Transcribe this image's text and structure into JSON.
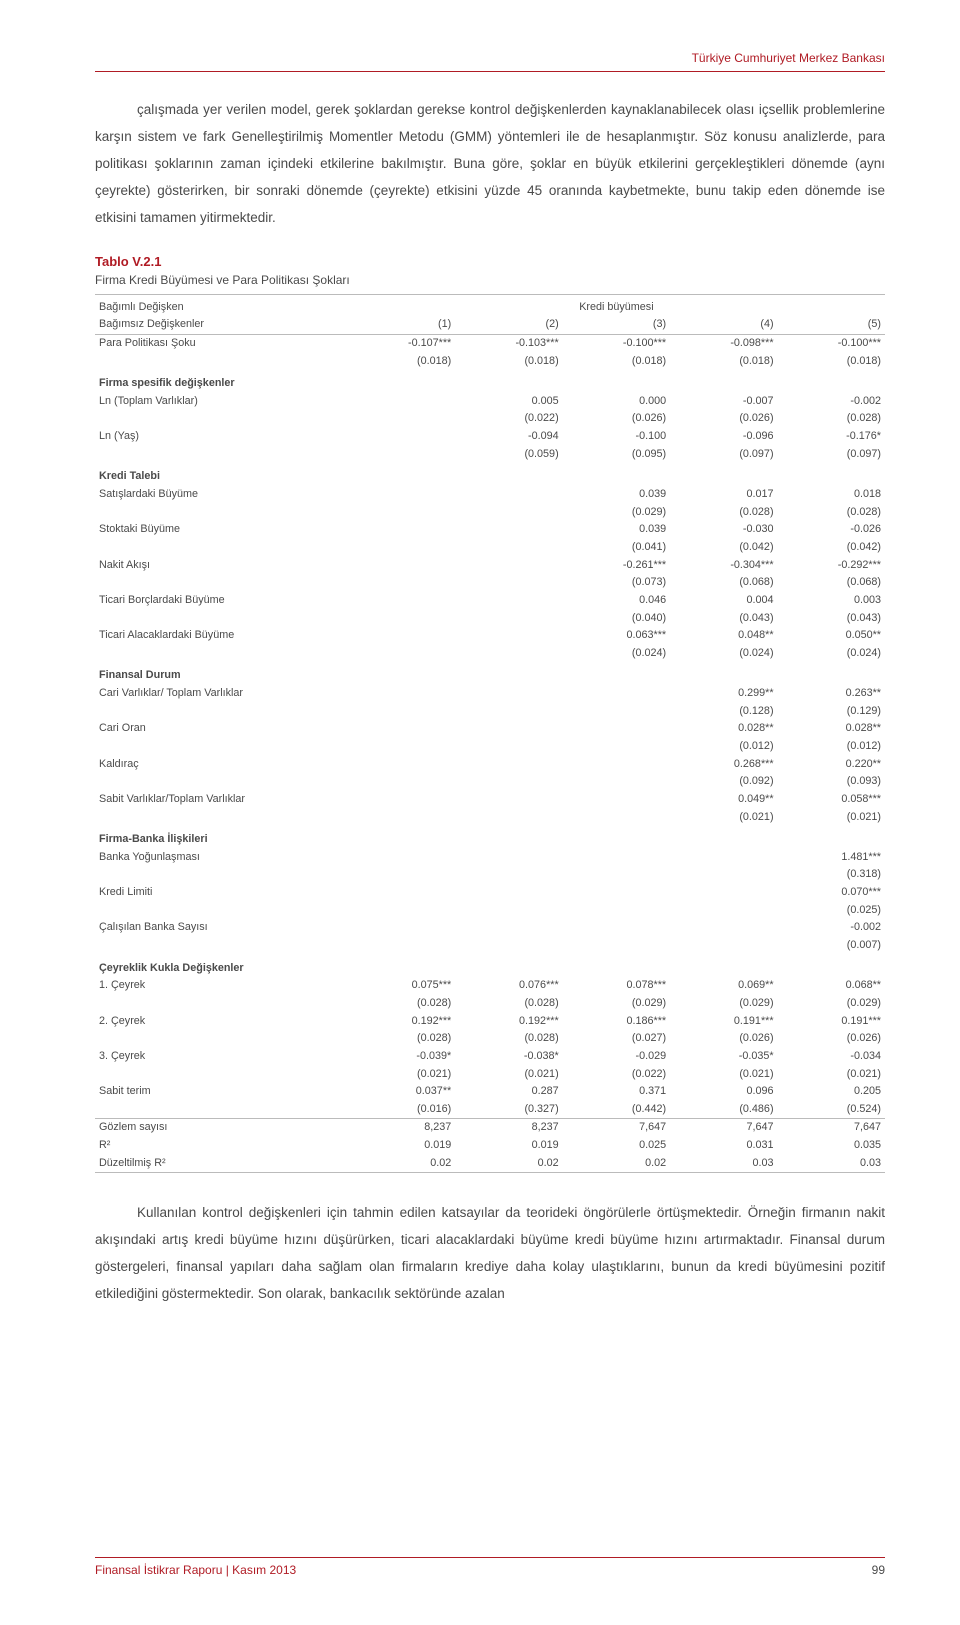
{
  "header": {
    "org": "Türkiye Cumhuriyet Merkez Bankası"
  },
  "para1": "çalışmada yer verilen model, gerek şoklardan gerekse kontrol değişkenlerden kaynaklanabilecek olası içsellik problemlerine karşın sistem ve fark Genelleştirilmiş Momentler Metodu (GMM) yöntemleri ile de hesaplanmıştır. Söz konusu analizlerde, para politikası şoklarının zaman içindeki etkilerine bakılmıştır. Buna göre, şoklar en büyük etkilerini gerçekleştikleri dönemde (aynı çeyrekte) gösterirken, bir sonraki dönemde (çeyrekte) etkisini yüzde 45 oranında kaybetmekte, bunu takip eden dönemde ise etkisini tamamen yitirmektedir.",
  "table": {
    "title": "Tablo V.2.1",
    "subtitle": "Firma Kredi Büyümesi ve Para Politikası Şokları",
    "depvar_label": "Bağımlı Değişken",
    "depvar_value": "Kredi büyümesi",
    "indvar_label": "Bağımsız Değişkenler",
    "col_numbers": [
      "(1)",
      "(2)",
      "(3)",
      "(4)",
      "(5)"
    ],
    "sections": {
      "policy": {
        "label": "Para Politikası Şoku",
        "vals": [
          "-0.107***",
          "-0.103***",
          "-0.100***",
          "-0.098***",
          "-0.100***"
        ],
        "ses": [
          "(0.018)",
          "(0.018)",
          "(0.018)",
          "(0.018)",
          "(0.018)"
        ]
      },
      "firm_spec_label": "Firma spesifik değişkenler",
      "ln_ta": {
        "label": "Ln (Toplam Varlıklar)",
        "vals": [
          "",
          "0.005",
          "0.000",
          "-0.007",
          "-0.002"
        ],
        "ses": [
          "",
          "(0.022)",
          "(0.026)",
          "(0.026)",
          "(0.028)"
        ]
      },
      "ln_age": {
        "label": "Ln (Yaş)",
        "vals": [
          "",
          "-0.094",
          "-0.100",
          "-0.096",
          "-0.176*"
        ],
        "ses": [
          "",
          "(0.059)",
          "(0.095)",
          "(0.097)",
          "(0.097)"
        ]
      },
      "credit_demand_label": "Kredi Talebi",
      "sales_growth": {
        "label": "Satışlardaki Büyüme",
        "vals": [
          "",
          "",
          "0.039",
          "0.017",
          "0.018"
        ],
        "ses": [
          "",
          "",
          "(0.029)",
          "(0.028)",
          "(0.028)"
        ]
      },
      "stock_growth": {
        "label": "Stoktaki Büyüme",
        "vals": [
          "",
          "",
          "0.039",
          "-0.030",
          "-0.026"
        ],
        "ses": [
          "",
          "",
          "(0.041)",
          "(0.042)",
          "(0.042)"
        ]
      },
      "cashflow": {
        "label": "Nakit Akışı",
        "vals": [
          "",
          "",
          "-0.261***",
          "-0.304***",
          "-0.292***"
        ],
        "ses": [
          "",
          "",
          "(0.073)",
          "(0.068)",
          "(0.068)"
        ]
      },
      "tradedebt_growth": {
        "label": "Ticari Borçlardaki Büyüme",
        "vals": [
          "",
          "",
          "0.046",
          "0.004",
          "0.003"
        ],
        "ses": [
          "",
          "",
          "(0.040)",
          "(0.043)",
          "(0.043)"
        ]
      },
      "traderec_growth": {
        "label": "Ticari Alacaklardaki Büyüme",
        "vals": [
          "",
          "",
          "0.063***",
          "0.048**",
          "0.050**"
        ],
        "ses": [
          "",
          "",
          "(0.024)",
          "(0.024)",
          "(0.024)"
        ]
      },
      "fin_state_label": "Finansal Durum",
      "curr_ta": {
        "label": "Cari Varlıklar/ Toplam Varlıklar",
        "vals": [
          "",
          "",
          "",
          "0.299**",
          "0.263**"
        ],
        "ses": [
          "",
          "",
          "",
          "(0.128)",
          "(0.129)"
        ]
      },
      "curr_ratio": {
        "label": "Cari Oran",
        "vals": [
          "",
          "",
          "",
          "0.028**",
          "0.028**"
        ],
        "ses": [
          "",
          "",
          "",
          "(0.012)",
          "(0.012)"
        ]
      },
      "leverage": {
        "label": "Kaldıraç",
        "vals": [
          "",
          "",
          "",
          "0.268***",
          "0.220**"
        ],
        "ses": [
          "",
          "",
          "",
          "(0.092)",
          "(0.093)"
        ]
      },
      "fixed_ta": {
        "label": "Sabit Varlıklar/Toplam Varlıklar",
        "vals": [
          "",
          "",
          "",
          "0.049**",
          "0.058***"
        ],
        "ses": [
          "",
          "",
          "",
          "(0.021)",
          "(0.021)"
        ]
      },
      "bank_rel_label": "Firma-Banka İlişkileri",
      "bank_conc": {
        "label": "Banka Yoğunlaşması",
        "vals": [
          "",
          "",
          "",
          "",
          "1.481***"
        ],
        "ses": [
          "",
          "",
          "",
          "",
          "(0.318)"
        ]
      },
      "credit_limit": {
        "label": "Kredi Limiti",
        "vals": [
          "",
          "",
          "",
          "",
          "0.070***"
        ],
        "ses": [
          "",
          "",
          "",
          "",
          "(0.025)"
        ]
      },
      "nbanks": {
        "label": "Çalışılan Banka Sayısı",
        "vals": [
          "",
          "",
          "",
          "",
          "-0.002"
        ],
        "ses": [
          "",
          "",
          "",
          "",
          "(0.007)"
        ]
      },
      "quarter_label": "Çeyreklik Kukla Değişkenler",
      "q1": {
        "label": "1. Çeyrek",
        "vals": [
          "0.075***",
          "0.076***",
          "0.078***",
          "0.069**",
          "0.068**"
        ],
        "ses": [
          "(0.028)",
          "(0.028)",
          "(0.029)",
          "(0.029)",
          "(0.029)"
        ]
      },
      "q2": {
        "label": "2. Çeyrek",
        "vals": [
          "0.192***",
          "0.192***",
          "0.186***",
          "0.191***",
          "0.191***"
        ],
        "ses": [
          "(0.028)",
          "(0.028)",
          "(0.027)",
          "(0.026)",
          "(0.026)"
        ]
      },
      "q3": {
        "label": "3. Çeyrek",
        "vals": [
          "-0.039*",
          "-0.038*",
          "-0.029",
          "-0.035*",
          "-0.034"
        ],
        "ses": [
          "(0.021)",
          "(0.021)",
          "(0.022)",
          "(0.021)",
          "(0.021)"
        ]
      },
      "constant": {
        "label": "Sabit terim",
        "vals": [
          "0.037**",
          "0.287",
          "0.371",
          "0.096",
          "0.205"
        ],
        "ses": [
          "(0.016)",
          "(0.327)",
          "(0.442)",
          "(0.486)",
          "(0.524)"
        ]
      },
      "nobs": {
        "label": "Gözlem sayısı",
        "vals": [
          "8,237",
          "8,237",
          "7,647",
          "7,647",
          "7,647"
        ]
      },
      "r2": {
        "label": "R²",
        "vals": [
          "0.019",
          "0.019",
          "0.025",
          "0.031",
          "0.035"
        ]
      },
      "adjr2": {
        "label": "Düzeltilmiş R²",
        "vals": [
          "0.02",
          "0.02",
          "0.02",
          "0.03",
          "0.03"
        ]
      }
    }
  },
  "para2": "Kullanılan kontrol değişkenleri için tahmin edilen katsayılar da teorideki öngörülerle örtüşmektedir. Örneğin firmanın nakit akışındaki artış kredi büyüme hızını düşürürken, ticari alacaklardaki büyüme kredi büyüme hızını artırmaktadır. Finansal durum göstergeleri, finansal yapıları daha sağlam olan firmaların krediye daha kolay ulaştıklarını, bunun da kredi büyümesini pozitif etkilediğini göstermektedir. Son olarak, bankacılık sektöründe azalan",
  "footer": {
    "report": "Finansal İstikrar Raporu | Kasım 2013",
    "page": "99"
  },
  "style": {
    "accent_color": "#b01b24",
    "text_color": "#4a4a4a",
    "border_color": "#bbbbbb"
  }
}
